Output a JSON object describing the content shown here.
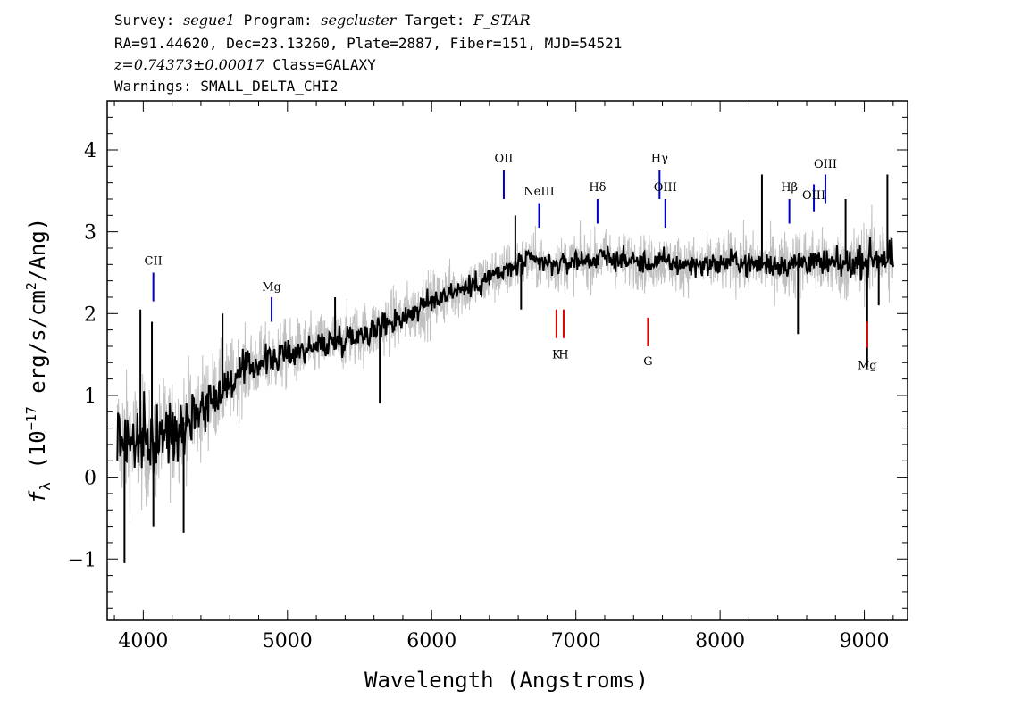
{
  "header": {
    "line1": [
      {
        "t": "Survey: ",
        "it": false
      },
      {
        "t": "segue1",
        "it": true
      },
      {
        "t": " Program: ",
        "it": false
      },
      {
        "t": "segcluster",
        "it": true
      },
      {
        "t": " Target: ",
        "it": false
      },
      {
        "t": "F_STAR",
        "it": true
      }
    ],
    "line2": "RA=91.44620, Dec=23.13260, Plate=2887, Fiber=151, MJD=54521",
    "line3": [
      {
        "t": "z=0.74373±0.00017",
        "it": true
      },
      {
        "t": " Class=GALAXY",
        "it": false
      }
    ],
    "line4": "Warnings: SMALL_DELTA_CHI2"
  },
  "chart_data": {
    "type": "line",
    "xlabel": "Wavelength (Angstroms)",
    "ylabel_parts": {
      "f": "f",
      "sub": "λ",
      "pre": " (10",
      "exp1": "−17",
      "mid": " erg/s/cm",
      "exp2": "2",
      "post": "/Ang)"
    },
    "xlim": [
      3750,
      9300
    ],
    "ylim": [
      -1.75,
      4.6
    ],
    "xticks": [
      4000,
      5000,
      6000,
      7000,
      8000,
      9000
    ],
    "yticks": [
      -1,
      0,
      1,
      2,
      3,
      4
    ],
    "ytick_labels": [
      "−1",
      "0",
      "1",
      "2",
      "3",
      "4"
    ],
    "series": [
      {
        "role": "raw-flux",
        "color": "#c0c0c0",
        "x": [
          3820,
          3900,
          4000,
          4100,
          4200,
          4300,
          4400,
          4500,
          4600,
          4700,
          4800,
          4900,
          5000,
          5100,
          5200,
          5300,
          5400,
          5500,
          5600,
          5700,
          5800,
          5900,
          6000,
          6100,
          6200,
          6300,
          6400,
          6500,
          6550,
          6600,
          6700,
          6800,
          6900,
          7000,
          7100,
          7200,
          7300,
          7400,
          7500,
          7600,
          7700,
          7800,
          7900,
          8000,
          8100,
          8200,
          8300,
          8400,
          8500,
          8600,
          8700,
          8800,
          8900,
          9000,
          9100,
          9200
        ],
        "y": [
          0.5,
          0.45,
          0.4,
          0.45,
          0.55,
          0.7,
          0.85,
          1.0,
          1.15,
          1.3,
          1.4,
          1.45,
          1.5,
          1.55,
          1.6,
          1.65,
          1.7,
          1.75,
          1.8,
          1.9,
          1.95,
          2.05,
          2.15,
          2.25,
          2.3,
          2.35,
          2.45,
          2.5,
          2.55,
          2.6,
          2.65,
          2.6,
          2.6,
          2.65,
          2.65,
          2.7,
          2.65,
          2.65,
          2.6,
          2.65,
          2.6,
          2.6,
          2.6,
          2.6,
          2.65,
          2.6,
          2.6,
          2.6,
          2.6,
          2.65,
          2.6,
          2.6,
          2.6,
          2.65,
          2.7,
          2.65
        ],
        "scatter": [
          0.9,
          0.9,
          0.9,
          0.85,
          0.8,
          0.75,
          0.7,
          0.65,
          0.6,
          0.55,
          0.5,
          0.5,
          0.5,
          0.45,
          0.45,
          0.45,
          0.45,
          0.45,
          0.45,
          0.45,
          0.45,
          0.45,
          0.45,
          0.45,
          0.4,
          0.4,
          0.4,
          0.4,
          0.4,
          0.4,
          0.4,
          0.4,
          0.4,
          0.4,
          0.4,
          0.4,
          0.4,
          0.4,
          0.4,
          0.4,
          0.4,
          0.4,
          0.4,
          0.4,
          0.45,
          0.45,
          0.45,
          0.45,
          0.5,
          0.5,
          0.5,
          0.5,
          0.55,
          0.55,
          0.6,
          0.6
        ]
      },
      {
        "role": "smoothed-flux",
        "color": "#000000",
        "x": [
          3820,
          3900,
          4000,
          4100,
          4200,
          4300,
          4400,
          4500,
          4600,
          4700,
          4800,
          4900,
          5000,
          5100,
          5200,
          5300,
          5400,
          5500,
          5600,
          5700,
          5800,
          5900,
          6000,
          6100,
          6200,
          6300,
          6400,
          6500,
          6550,
          6600,
          6700,
          6800,
          6900,
          7000,
          7100,
          7200,
          7300,
          7400,
          7500,
          7600,
          7700,
          7800,
          7900,
          8000,
          8100,
          8200,
          8300,
          8400,
          8500,
          8600,
          8700,
          8800,
          8900,
          9000,
          9100,
          9200
        ],
        "y": [
          0.5,
          0.45,
          0.4,
          0.45,
          0.55,
          0.7,
          0.85,
          1.0,
          1.15,
          1.3,
          1.4,
          1.45,
          1.5,
          1.55,
          1.6,
          1.65,
          1.7,
          1.75,
          1.8,
          1.9,
          1.95,
          2.05,
          2.15,
          2.25,
          2.3,
          2.35,
          2.45,
          2.5,
          2.55,
          2.6,
          2.65,
          2.6,
          2.6,
          2.65,
          2.65,
          2.7,
          2.65,
          2.65,
          2.6,
          2.65,
          2.6,
          2.6,
          2.6,
          2.6,
          2.65,
          2.6,
          2.6,
          2.6,
          2.6,
          2.65,
          2.6,
          2.6,
          2.6,
          2.65,
          2.7,
          2.65
        ],
        "scatter": [
          0.55,
          0.55,
          0.5,
          0.45,
          0.42,
          0.38,
          0.33,
          0.3,
          0.28,
          0.25,
          0.22,
          0.22,
          0.2,
          0.2,
          0.2,
          0.2,
          0.2,
          0.2,
          0.2,
          0.2,
          0.2,
          0.18,
          0.18,
          0.18,
          0.18,
          0.18,
          0.18,
          0.18,
          0.18,
          0.18,
          0.16,
          0.16,
          0.16,
          0.16,
          0.16,
          0.16,
          0.16,
          0.16,
          0.16,
          0.16,
          0.16,
          0.16,
          0.16,
          0.16,
          0.16,
          0.18,
          0.18,
          0.18,
          0.18,
          0.2,
          0.2,
          0.2,
          0.2,
          0.22,
          0.24,
          0.25
        ]
      }
    ],
    "spikes": [
      {
        "x": 3980,
        "y": 2.05
      },
      {
        "x": 4060,
        "y": 1.9
      },
      {
        "x": 3870,
        "y": -1.05
      },
      {
        "x": 4070,
        "y": -0.6
      },
      {
        "x": 4280,
        "y": -0.68
      },
      {
        "x": 4550,
        "y": 2.0
      },
      {
        "x": 5330,
        "y": 2.2
      },
      {
        "x": 5640,
        "y": 0.9
      },
      {
        "x": 6580,
        "y": 3.2
      },
      {
        "x": 6620,
        "y": 2.05
      },
      {
        "x": 8290,
        "y": 3.7
      },
      {
        "x": 8540,
        "y": 1.75
      },
      {
        "x": 8870,
        "y": 3.4
      },
      {
        "x": 9020,
        "y": 1.35
      },
      {
        "x": 9100,
        "y": 2.1
      },
      {
        "x": 9160,
        "y": 3.7
      }
    ],
    "emission_lines": [
      {
        "label": "CII",
        "x": 4070,
        "y0": 2.15,
        "y1": 2.5,
        "label_y": 2.6
      },
      {
        "label": "Mg",
        "x": 4890,
        "y0": 1.9,
        "y1": 2.2,
        "label_y": 2.28
      },
      {
        "label": "OII",
        "x": 6500,
        "y0": 3.4,
        "y1": 3.75,
        "label_y": 3.85
      },
      {
        "label": "NeIII",
        "x": 6745,
        "y0": 3.05,
        "y1": 3.35,
        "label_y": 3.45
      },
      {
        "label": "Hδ",
        "x": 7150,
        "y0": 3.1,
        "y1": 3.4,
        "label_y": 3.5
      },
      {
        "label": "Hγ",
        "x": 7580,
        "y0": 3.4,
        "y1": 3.75,
        "label_y": 3.85
      },
      {
        "label": "OIII",
        "x": 7620,
        "y0": 3.05,
        "y1": 3.4,
        "label_y": 3.5
      },
      {
        "label": "Hβ",
        "x": 8480,
        "y0": 3.1,
        "y1": 3.4,
        "label_y": 3.5
      },
      {
        "label": "OIII",
        "x": 8650,
        "y0": 3.25,
        "y1": 3.58,
        "label_y": 3.4
      },
      {
        "label": "OIII",
        "x": 8730,
        "y0": 3.35,
        "y1": 3.7,
        "label_y": 3.78
      }
    ],
    "absorption_lines": [
      {
        "label": "K",
        "x": 6865,
        "y0": 2.05,
        "y1": 1.7,
        "label_y": 1.45
      },
      {
        "label": "H",
        "x": 6915,
        "y0": 2.05,
        "y1": 1.7,
        "label_y": 1.45
      },
      {
        "label": "G",
        "x": 7500,
        "y0": 1.95,
        "y1": 1.6,
        "label_y": 1.37
      },
      {
        "label": "Mg",
        "x": 9020,
        "y0": 1.9,
        "y1": 1.58,
        "label_y": 1.32
      }
    ],
    "colors": {
      "raw": "#c0c0c0",
      "smoothed": "#000000",
      "emission": "#0000cc",
      "absorption": "#dd0000"
    }
  }
}
